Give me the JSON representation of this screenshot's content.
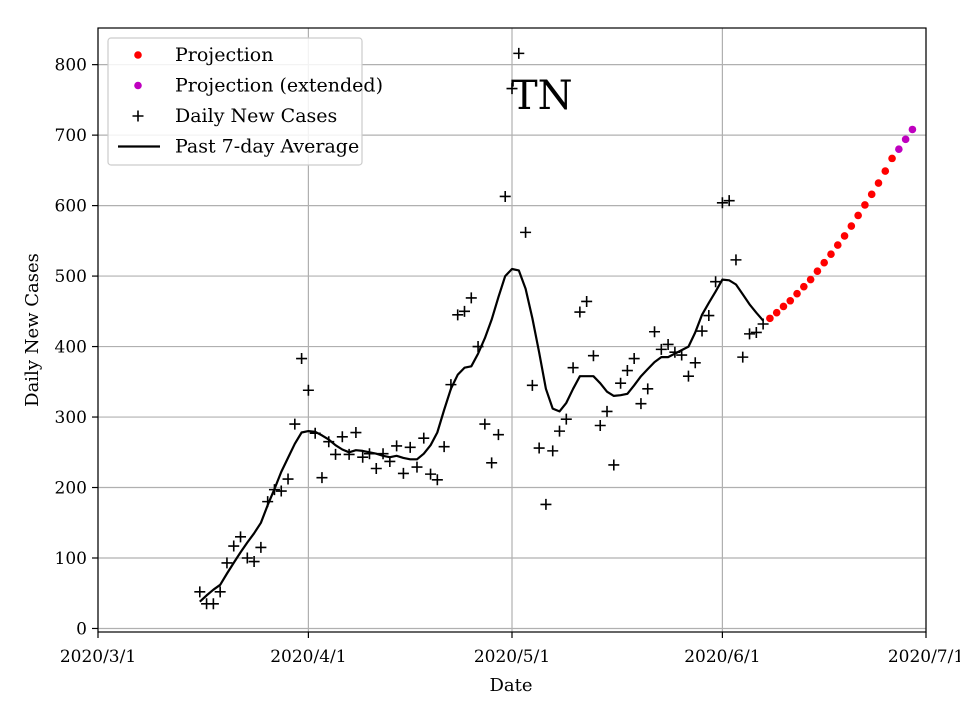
{
  "chart_data": {
    "type": "line",
    "state": "TN",
    "xlabel": "Date",
    "ylabel": "Daily New Cases",
    "xlim_days_since_2020_3_1": [
      0,
      122
    ],
    "ylim": [
      -5,
      852
    ],
    "grid": true,
    "legend_placement": "top-left",
    "colors": {
      "projection": "#ff0000",
      "projection_extended": "#bf00bf",
      "daily": "#000000",
      "average": "#000000",
      "grid": "#b0b0b0"
    },
    "x_ticks": [
      {
        "day": 0,
        "label": "2020/3/1"
      },
      {
        "day": 31,
        "label": "2020/4/1"
      },
      {
        "day": 61,
        "label": "2020/5/1"
      },
      {
        "day": 92,
        "label": "2020/6/1"
      },
      {
        "day": 122,
        "label": "2020/7/1"
      }
    ],
    "y_ticks": [
      0,
      100,
      200,
      300,
      400,
      500,
      600,
      700,
      800
    ],
    "legend": [
      {
        "key": "projection",
        "marker": "dot",
        "label": "Projection"
      },
      {
        "key": "projection_extended",
        "marker": "dot",
        "label": "Projection (extended)"
      },
      {
        "key": "daily",
        "marker": "plus",
        "label": "Daily New Cases"
      },
      {
        "key": "average",
        "marker": "line",
        "label": "Past 7-day Average"
      }
    ],
    "daily_new_cases": [
      [
        15,
        52
      ],
      [
        16,
        35
      ],
      [
        17,
        35
      ],
      [
        18,
        52
      ],
      [
        19,
        93
      ],
      [
        20,
        117
      ],
      [
        21,
        130
      ],
      [
        22,
        100
      ],
      [
        23,
        95
      ],
      [
        24,
        115
      ],
      [
        25,
        180
      ],
      [
        26,
        197
      ],
      [
        27,
        195
      ],
      [
        28,
        212
      ],
      [
        29,
        290
      ],
      [
        30,
        383
      ],
      [
        31,
        338
      ],
      [
        32,
        277
      ],
      [
        33,
        214
      ],
      [
        34,
        265
      ],
      [
        35,
        247
      ],
      [
        36,
        272
      ],
      [
        37,
        247
      ],
      [
        38,
        278
      ],
      [
        39,
        243
      ],
      [
        40,
        248
      ],
      [
        41,
        227
      ],
      [
        42,
        248
      ],
      [
        43,
        237
      ],
      [
        44,
        259
      ],
      [
        45,
        220
      ],
      [
        46,
        257
      ],
      [
        47,
        229
      ],
      [
        48,
        270
      ],
      [
        49,
        219
      ],
      [
        50,
        211
      ],
      [
        51,
        258
      ],
      [
        52,
        346
      ],
      [
        53,
        445
      ],
      [
        54,
        450
      ],
      [
        55,
        469
      ],
      [
        56,
        400
      ],
      [
        57,
        290
      ],
      [
        58,
        235
      ],
      [
        59,
        275
      ],
      [
        60,
        613
      ],
      [
        61,
        766
      ],
      [
        62,
        816
      ],
      [
        63,
        562
      ],
      [
        64,
        345
      ],
      [
        65,
        256
      ],
      [
        66,
        176
      ],
      [
        67,
        252
      ],
      [
        68,
        280
      ],
      [
        69,
        297
      ],
      [
        70,
        370
      ],
      [
        71,
        449
      ],
      [
        72,
        464
      ],
      [
        73,
        387
      ],
      [
        74,
        288
      ],
      [
        75,
        308
      ],
      [
        76,
        232
      ],
      [
        77,
        348
      ],
      [
        78,
        366
      ],
      [
        79,
        383
      ],
      [
        80,
        319
      ],
      [
        81,
        340
      ],
      [
        82,
        421
      ],
      [
        83,
        396
      ],
      [
        84,
        403
      ],
      [
        85,
        392
      ],
      [
        86,
        388
      ],
      [
        87,
        358
      ],
      [
        88,
        377
      ],
      [
        89,
        422
      ],
      [
        90,
        444
      ],
      [
        91,
        492
      ],
      [
        92,
        604
      ],
      [
        93,
        607
      ],
      [
        94,
        523
      ],
      [
        95,
        385
      ],
      [
        96,
        418
      ],
      [
        97,
        420
      ],
      [
        98,
        432
      ]
    ],
    "past_7day_average": [
      [
        15,
        38
      ],
      [
        16,
        47
      ],
      [
        17,
        55
      ],
      [
        18,
        62
      ],
      [
        19,
        78
      ],
      [
        20,
        93
      ],
      [
        21,
        108
      ],
      [
        22,
        122
      ],
      [
        23,
        135
      ],
      [
        24,
        150
      ],
      [
        25,
        175
      ],
      [
        26,
        198
      ],
      [
        27,
        222
      ],
      [
        28,
        242
      ],
      [
        29,
        262
      ],
      [
        30,
        278
      ],
      [
        31,
        280
      ],
      [
        32,
        279
      ],
      [
        33,
        274
      ],
      [
        34,
        268
      ],
      [
        35,
        260
      ],
      [
        36,
        254
      ],
      [
        37,
        250
      ],
      [
        38,
        253
      ],
      [
        39,
        252
      ],
      [
        40,
        250
      ],
      [
        41,
        248
      ],
      [
        42,
        245
      ],
      [
        43,
        243
      ],
      [
        44,
        245
      ],
      [
        45,
        242
      ],
      [
        46,
        240
      ],
      [
        47,
        240
      ],
      [
        48,
        248
      ],
      [
        49,
        260
      ],
      [
        50,
        278
      ],
      [
        51,
        310
      ],
      [
        52,
        340
      ],
      [
        53,
        360
      ],
      [
        54,
        370
      ],
      [
        55,
        372
      ],
      [
        56,
        390
      ],
      [
        57,
        412
      ],
      [
        58,
        438
      ],
      [
        59,
        470
      ],
      [
        60,
        500
      ],
      [
        61,
        510
      ],
      [
        62,
        508
      ],
      [
        63,
        482
      ],
      [
        64,
        440
      ],
      [
        65,
        392
      ],
      [
        66,
        340
      ],
      [
        67,
        312
      ],
      [
        68,
        308
      ],
      [
        69,
        320
      ],
      [
        70,
        340
      ],
      [
        71,
        358
      ],
      [
        72,
        358
      ],
      [
        73,
        358
      ],
      [
        74,
        348
      ],
      [
        75,
        336
      ],
      [
        76,
        330
      ],
      [
        77,
        331
      ],
      [
        78,
        333
      ],
      [
        79,
        345
      ],
      [
        80,
        358
      ],
      [
        81,
        368
      ],
      [
        82,
        378
      ],
      [
        83,
        385
      ],
      [
        84,
        385
      ],
      [
        85,
        390
      ],
      [
        86,
        395
      ],
      [
        87,
        400
      ],
      [
        88,
        420
      ],
      [
        89,
        445
      ],
      [
        90,
        462
      ],
      [
        91,
        478
      ],
      [
        92,
        495
      ],
      [
        93,
        494
      ],
      [
        94,
        488
      ],
      [
        95,
        474
      ],
      [
        96,
        460
      ],
      [
        97,
        448
      ],
      [
        98,
        437
      ]
    ],
    "projection": [
      [
        99,
        440
      ],
      [
        100,
        448
      ],
      [
        101,
        457
      ],
      [
        102,
        465
      ],
      [
        103,
        475
      ],
      [
        104,
        485
      ],
      [
        105,
        495
      ],
      [
        106,
        507
      ],
      [
        107,
        519
      ],
      [
        108,
        531
      ],
      [
        109,
        544
      ],
      [
        110,
        557
      ],
      [
        111,
        571
      ],
      [
        112,
        586
      ],
      [
        113,
        601
      ],
      [
        114,
        616
      ],
      [
        115,
        632
      ],
      [
        116,
        649
      ],
      [
        117,
        667
      ]
    ],
    "projection_extended": [
      [
        118,
        680
      ],
      [
        119,
        694
      ],
      [
        120,
        708
      ]
    ]
  }
}
